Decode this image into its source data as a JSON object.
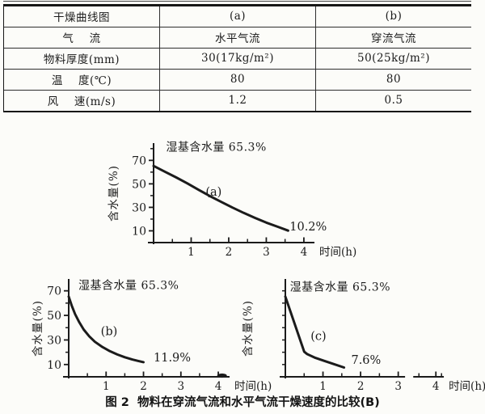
{
  "page": {
    "background": "#fcfcf9",
    "ink": "#1b1b1b"
  },
  "table": {
    "rows": [
      {
        "cells": [
          "干燥曲线图",
          "(a)",
          "(b)"
        ]
      },
      {
        "cells": [
          "气    流",
          "水平气流",
          "穿流气流"
        ]
      },
      {
        "cells": [
          "物料厚度(mm)",
          "30(17kg/m²)",
          "50(25kg/m²)"
        ]
      },
      {
        "cells": [
          "温    度(℃)",
          "80",
          "80"
        ]
      },
      {
        "cells": [
          "风    速(m/s)",
          "1.2",
          "0.5"
        ]
      }
    ]
  },
  "caption": "图 2  物料在穿流气流和水平气流干燥速度的比较(B)",
  "chart_data": [
    {
      "type": "line",
      "curve_label": "(a)",
      "annotation": "湿基含水量 65.3%",
      "end_label": "10.2%",
      "xlabel": "时间(h)",
      "ylabel": "含水量(%)",
      "x_ticks": [
        1,
        2,
        3,
        4
      ],
      "x_minor_ticks": [
        0.5,
        1.5,
        2.5,
        3.5
      ],
      "y_tick_labels": [
        10,
        30,
        50,
        70
      ],
      "y_minor_ticks": [
        20,
        40,
        60,
        80
      ],
      "xlim": [
        0,
        4.26
      ],
      "ylim": [
        0,
        84
      ],
      "axis_segments": [
        [
          0,
          4.26
        ]
      ],
      "grid": false,
      "initial_moisture_pct": 65.3,
      "final_moisture_pct": 10.2,
      "series": [
        {
          "name": "(a)",
          "points": [
            [
              0,
              65.3
            ],
            [
              0.3,
              60.4
            ],
            [
              0.6,
              55.5
            ],
            [
              0.9,
              50.4
            ],
            [
              1.2,
              44.9
            ],
            [
              1.5,
              39.6
            ],
            [
              1.8,
              34.6
            ],
            [
              2.1,
              29.8
            ],
            [
              2.4,
              25.3
            ],
            [
              2.7,
              21.0
            ],
            [
              3.0,
              17.0
            ],
            [
              3.3,
              13.5
            ],
            [
              3.58,
              10.2
            ]
          ]
        }
      ],
      "annotation_at": [
        0.33,
        78
      ],
      "curve_label_at": [
        1.6,
        40
      ],
      "end_label_at": [
        3.62,
        10.5
      ],
      "smudge_at": null
    },
    {
      "type": "line",
      "curve_label": "(b)",
      "annotation": "湿基含水量 65.3%",
      "end_label": "11.9%",
      "xlabel": "时间(h)",
      "ylabel": "含水量(%)",
      "x_ticks": [
        1,
        2,
        3,
        4
      ],
      "x_minor_ticks": [
        0.5,
        1.5,
        2.5,
        3.5
      ],
      "y_tick_labels": [
        10,
        30,
        50,
        70
      ],
      "y_minor_ticks": [
        20,
        40,
        60
      ],
      "xlim": [
        0,
        4.28
      ],
      "ylim": [
        0,
        79
      ],
      "axis_segments": [
        [
          0,
          4.28
        ]
      ],
      "grid": false,
      "initial_moisture_pct": 65.3,
      "final_moisture_pct": 11.9,
      "series": [
        {
          "name": "(b)",
          "points": [
            [
              0,
              65.3
            ],
            [
              0.08,
              58
            ],
            [
              0.17,
              51
            ],
            [
              0.28,
              44.5
            ],
            [
              0.4,
              38.5
            ],
            [
              0.55,
              33
            ],
            [
              0.7,
              28.5
            ],
            [
              0.9,
              24.3
            ],
            [
              1.1,
              20.9
            ],
            [
              1.3,
              18.2
            ],
            [
              1.5,
              15.9
            ],
            [
              1.7,
              14.1
            ],
            [
              1.85,
              13
            ],
            [
              2.0,
              11.9
            ]
          ]
        }
      ],
      "annotation_at": [
        0.26,
        71.5
      ],
      "curve_label_at": [
        1.08,
        34
      ],
      "end_label_at": [
        2.27,
        12.5
      ],
      "smudge_at": 4.1
    },
    {
      "type": "line",
      "curve_label": "(c)",
      "annotation": "湿基含水量 65.3%",
      "end_label": "7.6%",
      "xlabel": "时间(h)",
      "ylabel": "含水量(%)",
      "x_ticks": [
        1,
        2,
        3,
        4
      ],
      "x_minor_ticks": [
        0.5,
        1.5,
        2.5,
        3.55,
        4.15
      ],
      "y_tick_labels": [],
      "y_minor_ticks": [
        10,
        20,
        30,
        40,
        50,
        60,
        70
      ],
      "xlim": [
        0,
        4.21
      ],
      "ylim": [
        0,
        79
      ],
      "axis_segments": [
        [
          0,
          3.16
        ],
        [
          3.42,
          4.19
        ]
      ],
      "grid": false,
      "initial_moisture_pct": 65.3,
      "final_moisture_pct": 7.6,
      "series": [
        {
          "name": "(c)",
          "points": [
            [
              0,
              65.3
            ],
            [
              0.5,
              20.5
            ],
            [
              0.58,
              18.5
            ],
            [
              0.8,
              15.4
            ],
            [
              1.05,
              12.8
            ],
            [
              1.3,
              10.3
            ],
            [
              1.56,
              7.6
            ]
          ]
        }
      ],
      "annotation_at": [
        0.12,
        70
      ],
      "curve_label_at": [
        0.88,
        30
      ],
      "end_label_at": [
        1.75,
        10.5
      ],
      "smudge_at": null
    }
  ]
}
